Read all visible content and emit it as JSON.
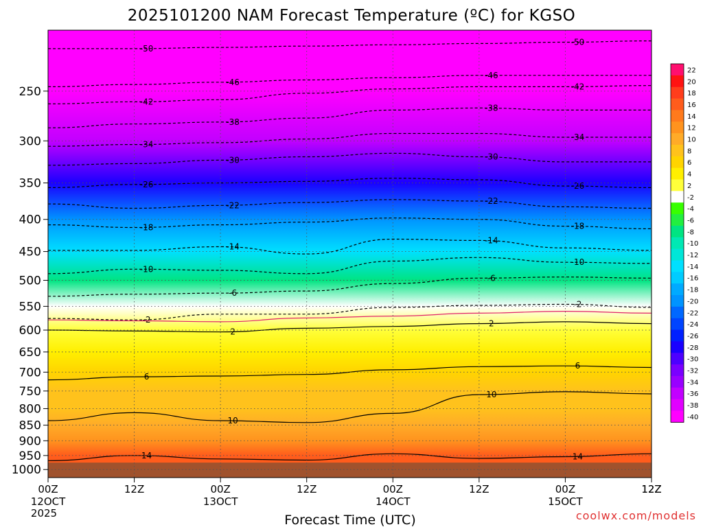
{
  "chart_data": {
    "type": "heatmap",
    "title": "2025101200 NAM Forecast Temperature (ºC) for KGSO",
    "xlabel": "Forecast Time (UTC)",
    "credit": "coolwx.com/models",
    "y_scale": "log-pressure, inverted",
    "ylim_hpa": [
      1030,
      200
    ],
    "y_ticks": [
      250,
      300,
      350,
      400,
      450,
      500,
      550,
      600,
      650,
      700,
      750,
      800,
      850,
      900,
      950,
      1000
    ],
    "x_ticks": [
      {
        "hour": 0,
        "label": "00Z",
        "date": "12OCT",
        "year": "2025"
      },
      {
        "hour": 12,
        "label": "12Z",
        "date": "",
        "year": ""
      },
      {
        "hour": 24,
        "label": "00Z",
        "date": "13OCT",
        "year": ""
      },
      {
        "hour": 36,
        "label": "12Z",
        "date": "",
        "year": ""
      },
      {
        "hour": 48,
        "label": "00Z",
        "date": "14OCT",
        "year": ""
      },
      {
        "hour": 60,
        "label": "12Z",
        "date": "",
        "year": ""
      },
      {
        "hour": 72,
        "label": "00Z",
        "date": "15OCT",
        "year": ""
      },
      {
        "hour": 84,
        "label": "12Z",
        "date": "",
        "year": ""
      }
    ],
    "xlim_hours": [
      0,
      84
    ],
    "grid": true,
    "colorbar": {
      "labels": [
        22,
        20,
        18,
        16,
        14,
        12,
        10,
        8,
        6,
        4,
        2,
        -2,
        -4,
        -6,
        -8,
        -10,
        -12,
        -14,
        -16,
        -18,
        -20,
        -22,
        -24,
        -26,
        -28,
        -30,
        -32,
        -34,
        -36,
        -38,
        -40
      ],
      "colors": [
        "#ff0f6f",
        "#ff1212",
        "#ff3d1c",
        "#ff5c1c",
        "#ff7a1c",
        "#ff931e",
        "#ffab28",
        "#ffc21c",
        "#ffd400",
        "#ffef00",
        "#ffff3a",
        "#ffffff",
        "#38ff00",
        "#22ef40",
        "#00e482",
        "#00e8b4",
        "#00e6d8",
        "#00e0ff",
        "#00ccff",
        "#00aaff",
        "#0094ff",
        "#0068ff",
        "#0044ff",
        "#0020ff",
        "#1a00ff",
        "#4d00ff",
        "#7a00ff",
        "#9900ff",
        "#c200ff",
        "#e100ff",
        "#ff00ff"
      ],
      "position": "right"
    },
    "surface_color": "#a0522d",
    "temperature_profile": {
      "pressure_hpa": [
        200,
        250,
        300,
        350,
        400,
        450,
        500,
        550,
        600,
        650,
        700,
        750,
        800,
        850,
        900,
        950,
        975
      ],
      "temp_c": [
        -52,
        -46,
        -36,
        -27,
        -20,
        -13,
        -7,
        -1,
        3,
        5,
        6,
        8,
        9,
        11,
        12,
        16,
        17
      ]
    },
    "contours": [
      {
        "level": -50,
        "points": [
          [
            0,
            214
          ],
          [
            12,
            214
          ],
          [
            24,
            213
          ],
          [
            36,
            212
          ],
          [
            48,
            211
          ],
          [
            60,
            210
          ],
          [
            72,
            209
          ],
          [
            84,
            208
          ]
        ]
      },
      {
        "level": -46,
        "points": [
          [
            0,
            246
          ],
          [
            12,
            244
          ],
          [
            24,
            242
          ],
          [
            36,
            240
          ],
          [
            48,
            238
          ],
          [
            60,
            236
          ],
          [
            72,
            236
          ],
          [
            84,
            236
          ]
        ]
      },
      {
        "level": -42,
        "points": [
          [
            0,
            262
          ],
          [
            12,
            260
          ],
          [
            24,
            258
          ],
          [
            36,
            252
          ],
          [
            48,
            248
          ],
          [
            60,
            246
          ],
          [
            72,
            246
          ],
          [
            84,
            245
          ]
        ]
      },
      {
        "level": -38,
        "points": [
          [
            0,
            286
          ],
          [
            12,
            282
          ],
          [
            24,
            280
          ],
          [
            36,
            276
          ],
          [
            48,
            268
          ],
          [
            60,
            266
          ],
          [
            72,
            268
          ],
          [
            84,
            268
          ]
        ]
      },
      {
        "level": -34,
        "points": [
          [
            0,
            306
          ],
          [
            12,
            304
          ],
          [
            24,
            302
          ],
          [
            36,
            298
          ],
          [
            48,
            292
          ],
          [
            60,
            292
          ],
          [
            72,
            296
          ],
          [
            84,
            296
          ]
        ]
      },
      {
        "level": -30,
        "points": [
          [
            0,
            328
          ],
          [
            12,
            326
          ],
          [
            24,
            322
          ],
          [
            36,
            318
          ],
          [
            48,
            314
          ],
          [
            60,
            318
          ],
          [
            72,
            324
          ],
          [
            84,
            324
          ]
        ]
      },
      {
        "level": -26,
        "points": [
          [
            0,
            356
          ],
          [
            12,
            352
          ],
          [
            24,
            350
          ],
          [
            36,
            348
          ],
          [
            48,
            344
          ],
          [
            60,
            346
          ],
          [
            72,
            354
          ],
          [
            84,
            356
          ]
        ]
      },
      {
        "level": -22,
        "points": [
          [
            0,
            378
          ],
          [
            12,
            384
          ],
          [
            24,
            380
          ],
          [
            36,
            376
          ],
          [
            48,
            372
          ],
          [
            60,
            374
          ],
          [
            72,
            382
          ],
          [
            84,
            384
          ]
        ]
      },
      {
        "level": -18,
        "points": [
          [
            0,
            408
          ],
          [
            12,
            412
          ],
          [
            24,
            408
          ],
          [
            36,
            404
          ],
          [
            48,
            398
          ],
          [
            60,
            400
          ],
          [
            72,
            410
          ],
          [
            84,
            414
          ]
        ]
      },
      {
        "level": -14,
        "points": [
          [
            0,
            448
          ],
          [
            12,
            448
          ],
          [
            24,
            442
          ],
          [
            36,
            454
          ],
          [
            48,
            430
          ],
          [
            60,
            432
          ],
          [
            72,
            444
          ],
          [
            84,
            448
          ]
        ]
      },
      {
        "level": -10,
        "points": [
          [
            0,
            488
          ],
          [
            12,
            480
          ],
          [
            24,
            482
          ],
          [
            36,
            488
          ],
          [
            48,
            466
          ],
          [
            60,
            460
          ],
          [
            72,
            468
          ],
          [
            84,
            470
          ]
        ]
      },
      {
        "level": -6,
        "points": [
          [
            0,
            530
          ],
          [
            12,
            526
          ],
          [
            24,
            524
          ],
          [
            36,
            520
          ],
          [
            48,
            506
          ],
          [
            60,
            496
          ],
          [
            72,
            494
          ],
          [
            84,
            496
          ]
        ]
      },
      {
        "level": -2,
        "points": [
          [
            0,
            575
          ],
          [
            12,
            578
          ],
          [
            24,
            566
          ],
          [
            36,
            566
          ],
          [
            48,
            552
          ],
          [
            60,
            548
          ],
          [
            72,
            546
          ],
          [
            84,
            552
          ]
        ]
      },
      {
        "level": 2,
        "points": [
          [
            0,
            600
          ],
          [
            12,
            602
          ],
          [
            24,
            604
          ],
          [
            36,
            596
          ],
          [
            48,
            592
          ],
          [
            60,
            586
          ],
          [
            72,
            582
          ],
          [
            84,
            586
          ]
        ]
      },
      {
        "level": 6,
        "points": [
          [
            0,
            720
          ],
          [
            12,
            712
          ],
          [
            24,
            710
          ],
          [
            36,
            706
          ],
          [
            48,
            694
          ],
          [
            60,
            686
          ],
          [
            72,
            684
          ],
          [
            84,
            688
          ]
        ]
      },
      {
        "level": 10,
        "points": [
          [
            0,
            836
          ],
          [
            12,
            812
          ],
          [
            24,
            836
          ],
          [
            36,
            842
          ],
          [
            48,
            814
          ],
          [
            60,
            760
          ],
          [
            72,
            752
          ],
          [
            84,
            758
          ]
        ]
      },
      {
        "level": 14,
        "points": [
          [
            0,
            968
          ],
          [
            12,
            950
          ],
          [
            24,
            962
          ],
          [
            36,
            966
          ],
          [
            48,
            944
          ],
          [
            60,
            960
          ],
          [
            72,
            954
          ],
          [
            84,
            944
          ]
        ]
      }
    ]
  }
}
